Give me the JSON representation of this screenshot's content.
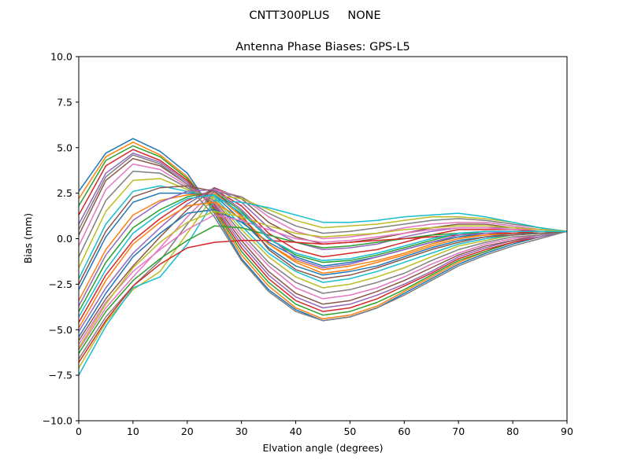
{
  "suptitle": "CNTT300PLUS     NONE",
  "chart_data": {
    "type": "line",
    "title": "Antenna Phase Biases: GPS-L5",
    "xlabel": "Elvation angle (degrees)",
    "ylabel": "Bias (mm)",
    "xlim": [
      0,
      90
    ],
    "ylim": [
      -10,
      10
    ],
    "xticks": [
      0,
      10,
      20,
      30,
      40,
      50,
      60,
      70,
      80,
      90
    ],
    "yticks": [
      -10.0,
      -7.5,
      -5.0,
      -2.5,
      0.0,
      2.5,
      5.0,
      7.5,
      10.0
    ],
    "ytick_labels": [
      "−10.0",
      "−7.5",
      "−5.0",
      "−2.5",
      "0.0",
      "2.5",
      "5.0",
      "7.5",
      "10.0"
    ],
    "grid": false,
    "x": [
      0,
      5,
      10,
      15,
      20,
      25,
      30,
      35,
      40,
      45,
      50,
      55,
      60,
      65,
      70,
      75,
      80,
      85,
      90
    ],
    "series_colors": [
      "#1f77b4",
      "#ff7f0e",
      "#2ca02c",
      "#d62728",
      "#9467bd",
      "#8c564b",
      "#e377c2",
      "#7f7f7f",
      "#bcbd22",
      "#17becf"
    ],
    "series": [
      {
        "values": [
          2.6,
          4.7,
          5.5,
          4.8,
          3.6,
          1.4,
          -1.1,
          -2.8,
          -3.9,
          -4.5,
          -4.3,
          -3.8,
          -3.0,
          -2.2,
          -1.4,
          -0.8,
          -0.3,
          0.1,
          0.4
        ]
      },
      {
        "values": [
          2.2,
          4.5,
          5.3,
          4.6,
          3.4,
          1.5,
          -0.9,
          -2.6,
          -3.8,
          -4.4,
          -4.2,
          -3.7,
          -2.9,
          -2.1,
          -1.3,
          -0.7,
          -0.2,
          0.1,
          0.4
        ]
      },
      {
        "values": [
          1.8,
          4.3,
          5.1,
          4.5,
          3.3,
          1.6,
          -0.7,
          -2.4,
          -3.6,
          -4.2,
          -4.0,
          -3.5,
          -2.8,
          -2.0,
          -1.2,
          -0.7,
          -0.2,
          0.1,
          0.4
        ]
      },
      {
        "values": [
          1.3,
          4.0,
          4.9,
          4.3,
          3.2,
          1.7,
          -0.5,
          -2.2,
          -3.4,
          -4.0,
          -3.8,
          -3.3,
          -2.6,
          -1.9,
          -1.1,
          -0.6,
          -0.2,
          0.1,
          0.4
        ]
      },
      {
        "values": [
          0.8,
          3.6,
          4.7,
          4.2,
          3.1,
          1.8,
          -0.3,
          -2.0,
          -3.2,
          -3.8,
          -3.6,
          -3.1,
          -2.5,
          -1.8,
          -1.0,
          -0.5,
          -0.1,
          0.1,
          0.4
        ]
      },
      {
        "values": [
          0.2,
          3.2,
          4.4,
          4.0,
          3.0,
          1.9,
          -0.1,
          -1.8,
          -3.0,
          -3.6,
          -3.4,
          -2.9,
          -2.3,
          -1.6,
          -0.9,
          -0.4,
          -0.1,
          0.2,
          0.4
        ]
      },
      {
        "values": [
          -0.4,
          2.7,
          4.1,
          3.8,
          2.9,
          2.0,
          0.1,
          -1.5,
          -2.7,
          -3.3,
          -3.1,
          -2.7,
          -2.1,
          -1.4,
          -0.8,
          -0.3,
          0.0,
          0.2,
          0.4
        ]
      },
      {
        "values": [
          -1.0,
          2.1,
          3.7,
          3.6,
          2.8,
          2.1,
          0.3,
          -1.3,
          -2.4,
          -3.0,
          -2.8,
          -2.4,
          -1.9,
          -1.2,
          -0.6,
          -0.2,
          0.1,
          0.2,
          0.4
        ]
      },
      {
        "values": [
          -1.6,
          1.5,
          3.2,
          3.3,
          2.7,
          2.2,
          0.5,
          -1.0,
          -2.1,
          -2.7,
          -2.5,
          -2.1,
          -1.6,
          -1.0,
          -0.4,
          -0.1,
          0.2,
          0.3,
          0.4
        ]
      },
      {
        "values": [
          -2.2,
          0.8,
          2.6,
          2.9,
          2.6,
          2.3,
          0.7,
          -0.8,
          -1.8,
          -2.4,
          -2.2,
          -1.8,
          -1.3,
          -0.8,
          -0.3,
          0.0,
          0.2,
          0.3,
          0.4
        ]
      },
      {
        "values": [
          -2.8,
          0.1,
          2.0,
          2.5,
          2.5,
          2.4,
          1.0,
          -0.5,
          -1.5,
          -2.0,
          -1.8,
          -1.5,
          -1.0,
          -0.5,
          -0.1,
          0.1,
          0.3,
          0.3,
          0.4
        ]
      },
      {
        "values": [
          -3.4,
          -0.6,
          1.3,
          2.1,
          2.4,
          2.5,
          1.2,
          -0.3,
          -1.2,
          -1.7,
          -1.5,
          -1.2,
          -0.8,
          -0.3,
          0.1,
          0.2,
          0.3,
          0.4,
          0.4
        ]
      },
      {
        "values": [
          -4.0,
          -1.3,
          0.6,
          1.6,
          2.3,
          2.6,
          1.5,
          0.0,
          -0.9,
          -1.3,
          -1.2,
          -0.9,
          -0.5,
          -0.1,
          0.3,
          0.4,
          0.4,
          0.4,
          0.4
        ]
      },
      {
        "values": [
          -4.6,
          -2.0,
          -0.1,
          1.1,
          2.1,
          2.7,
          1.8,
          0.3,
          -0.6,
          -1.0,
          -0.8,
          -0.6,
          -0.2,
          0.2,
          0.5,
          0.5,
          0.5,
          0.4,
          0.4
        ]
      },
      {
        "values": [
          -5.1,
          -2.7,
          -0.8,
          0.6,
          1.9,
          2.8,
          2.0,
          0.6,
          -0.2,
          -0.6,
          -0.5,
          -0.3,
          0.1,
          0.4,
          0.6,
          0.6,
          0.6,
          0.5,
          0.4
        ]
      },
      {
        "values": [
          -5.6,
          -3.3,
          -1.5,
          0.1,
          1.6,
          2.8,
          2.2,
          0.9,
          0.1,
          -0.3,
          -0.2,
          0.0,
          0.3,
          0.6,
          0.8,
          0.8,
          0.6,
          0.5,
          0.4
        ]
      },
      {
        "values": [
          -6.1,
          -3.8,
          -2.1,
          -0.5,
          1.2,
          2.7,
          2.3,
          1.2,
          0.4,
          0.0,
          0.1,
          0.3,
          0.6,
          0.8,
          0.9,
          0.9,
          0.7,
          0.5,
          0.4
        ]
      },
      {
        "values": [
          -6.6,
          -4.3,
          -2.6,
          -1.2,
          0.8,
          2.6,
          2.3,
          1.4,
          0.7,
          0.3,
          0.4,
          0.6,
          0.8,
          1.0,
          1.1,
          1.0,
          0.8,
          0.6,
          0.4
        ]
      },
      {
        "values": [
          -7.1,
          -4.6,
          -2.8,
          -1.8,
          0.3,
          2.4,
          2.2,
          1.6,
          1.0,
          0.6,
          0.7,
          0.8,
          1.0,
          1.2,
          1.2,
          1.1,
          0.9,
          0.6,
          0.4
        ]
      },
      {
        "values": [
          -7.5,
          -4.8,
          -2.7,
          -2.1,
          -0.3,
          2.1,
          2.0,
          1.7,
          1.3,
          0.9,
          0.9,
          1.0,
          1.2,
          1.3,
          1.4,
          1.2,
          0.9,
          0.6,
          0.4
        ]
      },
      {
        "values": [
          -5.4,
          -3.0,
          -1.0,
          0.3,
          1.4,
          1.6,
          0.9,
          -0.2,
          -1.0,
          -1.5,
          -1.3,
          -1.0,
          -0.6,
          -0.2,
          0.1,
          0.3,
          0.3,
          0.4,
          0.4
        ]
      },
      {
        "values": [
          -4.9,
          -2.3,
          -0.3,
          0.9,
          1.8,
          2.0,
          1.1,
          -0.3,
          -1.3,
          -1.9,
          -1.7,
          -1.3,
          -0.9,
          -0.4,
          0.0,
          0.2,
          0.3,
          0.4,
          0.4
        ]
      },
      {
        "values": [
          -6.3,
          -4.0,
          -2.3,
          -1.1,
          -0.1,
          0.7,
          0.6,
          0.2,
          -0.2,
          -0.5,
          -0.4,
          -0.2,
          0.0,
          0.2,
          0.3,
          0.3,
          0.3,
          0.4,
          0.4
        ]
      },
      {
        "values": [
          -6.8,
          -4.5,
          -2.6,
          -1.4,
          -0.5,
          -0.2,
          -0.1,
          -0.1,
          -0.2,
          -0.3,
          -0.2,
          -0.1,
          0.0,
          0.1,
          0.2,
          0.3,
          0.3,
          0.4,
          0.4
        ]
      },
      {
        "values": [
          -3.7,
          -0.9,
          1.0,
          2.0,
          2.6,
          2.7,
          1.6,
          0.1,
          -1.1,
          -1.6,
          -1.4,
          -1.0,
          -0.6,
          -0.2,
          0.2,
          0.3,
          0.4,
          0.4,
          0.4
        ]
      },
      {
        "values": [
          -2.5,
          0.4,
          2.3,
          2.8,
          2.9,
          2.6,
          1.3,
          -0.6,
          -1.7,
          -2.2,
          -2.0,
          -1.6,
          -1.1,
          -0.6,
          -0.2,
          0.1,
          0.2,
          0.3,
          0.4
        ]
      },
      {
        "values": [
          -5.8,
          -3.5,
          -1.8,
          -0.6,
          0.5,
          1.3,
          1.0,
          0.5,
          0.0,
          -0.2,
          -0.1,
          0.1,
          0.3,
          0.5,
          0.6,
          0.6,
          0.5,
          0.5,
          0.4
        ]
      },
      {
        "values": [
          0.5,
          3.4,
          4.6,
          4.1,
          3.0,
          1.2,
          -1.2,
          -2.9,
          -4.0,
          -4.5,
          -4.3,
          -3.8,
          -3.1,
          -2.3,
          -1.5,
          -0.9,
          -0.4,
          0.0,
          0.4
        ]
      },
      {
        "values": [
          -6.0,
          -3.6,
          -1.6,
          -0.2,
          0.9,
          1.5,
          1.2,
          0.7,
          0.3,
          0.1,
          0.2,
          0.3,
          0.5,
          0.6,
          0.7,
          0.7,
          0.6,
          0.5,
          0.4
        ]
      },
      {
        "values": [
          -4.3,
          -1.7,
          0.3,
          1.4,
          2.2,
          2.4,
          1.4,
          0.0,
          -0.8,
          -1.2,
          -1.1,
          -0.8,
          -0.4,
          0.0,
          0.3,
          0.4,
          0.4,
          0.4,
          0.4
        ]
      }
    ]
  }
}
